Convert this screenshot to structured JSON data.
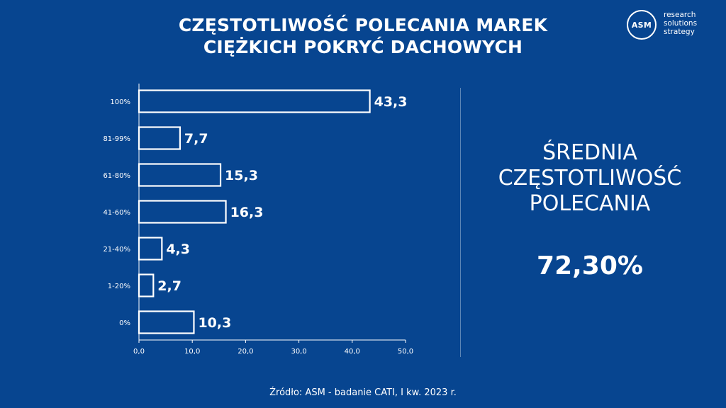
{
  "header": {
    "title_line1": "CZĘSTOTLIWOŚĆ POLECANIA MAREK",
    "title_line2": "CIĘŻKICH POKRYĆ DACHOWYCH"
  },
  "logo": {
    "mark": "ASM",
    "line1": "research",
    "line2": "solutions",
    "line3": "strategy"
  },
  "chart_data": {
    "type": "bar",
    "orientation": "horizontal",
    "categories": [
      "100%",
      "81-99%",
      "61-80%",
      "41-60%",
      "21-40%",
      "1-20%",
      "0%"
    ],
    "values": [
      43.3,
      7.7,
      15.3,
      16.3,
      4.3,
      2.7,
      10.3
    ],
    "value_labels": [
      "43,3",
      "7,7",
      "15,3",
      "16,3",
      "4,3",
      "2,7",
      "10,3"
    ],
    "xlim": [
      0,
      50
    ],
    "x_ticks": [
      0,
      10,
      20,
      30,
      40,
      50
    ],
    "x_tick_labels": [
      "0,0",
      "10,0",
      "20,0",
      "30,0",
      "40,0",
      "50,0"
    ],
    "grid": false,
    "bar_style": "outline",
    "color": "#ffffff"
  },
  "summary": {
    "label_line1": "ŚREDNIA",
    "label_line2": "CZĘSTOTLIWOŚĆ",
    "label_line3": "POLECANIA",
    "value": "72,30%"
  },
  "footer": {
    "source": "Źródło: ASM - badanie CATI, I kw. 2023 r."
  },
  "colors": {
    "background": "#074590",
    "foreground": "#ffffff"
  }
}
